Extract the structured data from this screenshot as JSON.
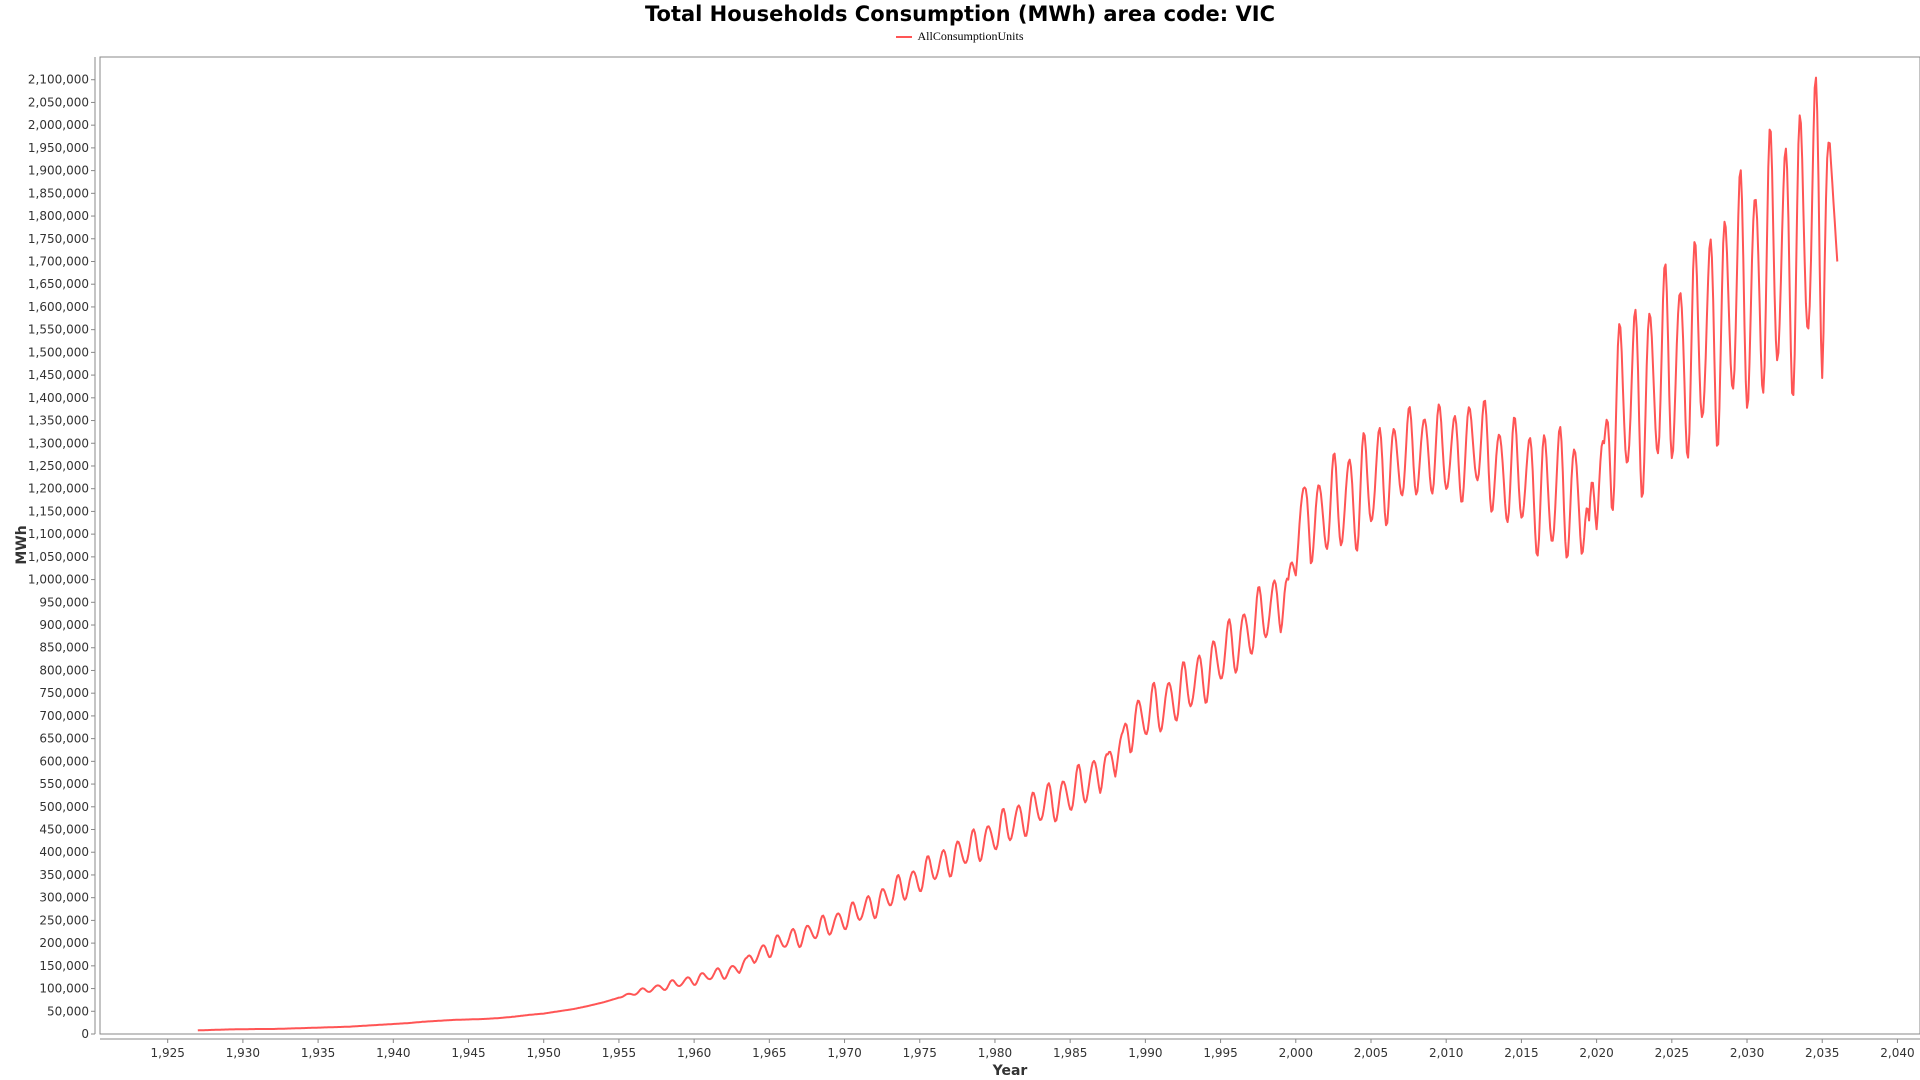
{
  "chart_data": {
    "type": "line",
    "title": "Total Households Consumption (MWh) area code: VIC",
    "xlabel": "Year",
    "ylabel": "MWh",
    "xlim": [
      1920.5,
      2041.5
    ],
    "ylim": [
      0,
      2150000
    ],
    "x_ticks": [
      1925,
      1930,
      1935,
      1940,
      1945,
      1950,
      1955,
      1960,
      1965,
      1970,
      1975,
      1980,
      1985,
      1990,
      1995,
      2000,
      2005,
      2010,
      2015,
      2020,
      2025,
      2030,
      2035,
      2040
    ],
    "x_tick_labels": [
      "1,925",
      "1,930",
      "1,935",
      "1,940",
      "1,945",
      "1,950",
      "1,955",
      "1,960",
      "1,965",
      "1,970",
      "1,975",
      "1,980",
      "1,985",
      "1,990",
      "1,995",
      "2,000",
      "2,005",
      "2,010",
      "2,015",
      "2,020",
      "2,025",
      "2,030",
      "2,035",
      "2,040"
    ],
    "y_tick_step": 50000,
    "y_tick_labels": [
      "0",
      "50,000",
      "100,000",
      "150,000",
      "200,000",
      "250,000",
      "300,000",
      "350,000",
      "400,000",
      "450,000",
      "500,000",
      "550,000",
      "600,000",
      "650,000",
      "700,000",
      "750,000",
      "800,000",
      "850,000",
      "900,000",
      "950,000",
      "1,000,000",
      "1,050,000",
      "1,100,000",
      "1,150,000",
      "1,200,000",
      "1,250,000",
      "1,300,000",
      "1,350,000",
      "1,400,000",
      "1,450,000",
      "1,500,000",
      "1,550,000",
      "1,600,000",
      "1,650,000",
      "1,700,000",
      "1,750,000",
      "1,800,000",
      "1,850,000",
      "1,900,000",
      "1,950,000",
      "2,000,000",
      "2,050,000",
      "2,100,000"
    ],
    "grid": false,
    "legend_position": "top-center",
    "series": [
      {
        "name": "AllConsumptionUnits",
        "color": "#ff5555",
        "x": [
          1927.0,
          1928.0,
          1929.0,
          1930.0,
          1931.0,
          1932.0,
          1933.0,
          1934.0,
          1935.0,
          1936.0,
          1937.0,
          1938.0,
          1939.0,
          1940.0,
          1941.0,
          1942.0,
          1943.0,
          1944.0,
          1945.0,
          1946.0,
          1947.0,
          1948.0,
          1949.0,
          1950.0,
          1951.0,
          1952.0,
          1953.0,
          1954.0,
          1955.0,
          1956.0,
          1957.0,
          1958.0,
          1959.0,
          1960.0,
          1961.0,
          1962.0,
          1963.0,
          1963.5,
          1964.0,
          1965.0,
          1966.0,
          1967.0,
          1968.0,
          1969.0,
          1970.0,
          1971.0,
          1972.0,
          1973.0,
          1974.0,
          1975.0,
          1976.0,
          1977.0,
          1978.0,
          1979.0,
          1980.0,
          1981.0,
          1982.0,
          1983.0,
          1984.0,
          1985.0,
          1986.0,
          1987.0,
          1987.5,
          1988.0,
          1988.5,
          1989.0,
          1990.0,
          1991.0,
          1992.0,
          1993.0,
          1994.0,
          1995.0,
          1996.0,
          1997.0,
          1998.0,
          1999.0,
          1999.5,
          2000.0,
          2000.5,
          2001.0,
          2002.0,
          2003.0,
          2004.0,
          2005.0,
          2006.0,
          2007.0,
          2008.0,
          2009.0,
          2010.0,
          2011.0,
          2012.0,
          2013.0,
          2014.0,
          2015.0,
          2016.0,
          2017.0,
          2018.0,
          2019.0,
          2019.5,
          2020.0,
          2020.5,
          2021.0,
          2022.0,
          2023.0,
          2024.0,
          2025.0,
          2026.0,
          2027.0,
          2028.0,
          2029.0,
          2030.0,
          2031.0,
          2032.0,
          2033.0,
          2034.0,
          2035.0,
          2035.5,
          2036.0
        ],
        "values": [
          8000,
          9000,
          10000,
          10500,
          11000,
          11000,
          12000,
          13000,
          14000,
          15000,
          16000,
          18000,
          20000,
          22000,
          24000,
          27000,
          29000,
          31000,
          32000,
          33000,
          35000,
          38000,
          42000,
          45000,
          50000,
          55000,
          62000,
          70000,
          80000,
          90000,
          98000,
          105000,
          112000,
          120000,
          128000,
          135000,
          145000,
          168000,
          170000,
          190000,
          205000,
          215000,
          228000,
          240000,
          255000,
          270000,
          285000,
          305000,
          325000,
          345000,
          365000,
          385000,
          400000,
          420000,
          440000,
          460000,
          480000,
          500000,
          515000,
          530000,
          550000,
          580000,
          615000,
          600000,
          665000,
          680000,
          700000,
          720000,
          745000,
          765000,
          795000,
          825000,
          860000,
          895000,
          925000,
          960000,
          1000000,
          1060000,
          1200000,
          1130000,
          1150000,
          1170000,
          1190000,
          1210000,
          1240000,
          1260000,
          1280000,
          1290000,
          1270000,
          1280000,
          1300000,
          1260000,
          1230000,
          1230000,
          1200000,
          1180000,
          1200000,
          1170000,
          1130000,
          1250000,
          1300000,
          1350000,
          1390000,
          1410000,
          1440000,
          1470000,
          1490000,
          1520000,
          1560000,
          1600000,
          1640000,
          1670000,
          1700000,
          1730000,
          1760000,
          1790000,
          1960000,
          1700000
        ],
        "seasonal_amplitude": [
          0,
          0,
          0,
          0,
          0,
          0,
          0,
          0,
          0,
          0,
          0,
          0,
          0,
          0,
          0,
          0,
          0,
          0,
          0,
          0,
          0,
          0,
          0,
          0,
          0,
          0,
          0,
          0,
          0,
          5000,
          5000,
          8000,
          8000,
          10000,
          10000,
          12000,
          12000,
          0,
          15000,
          18000,
          18000,
          20000,
          20000,
          22000,
          22000,
          25000,
          25000,
          28000,
          28000,
          30000,
          30000,
          32000,
          32000,
          35000,
          35000,
          38000,
          38000,
          40000,
          40000,
          42000,
          42000,
          45000,
          0,
          45000,
          0,
          50000,
          50000,
          52000,
          52000,
          55000,
          55000,
          58000,
          58000,
          60000,
          60000,
          65000,
          0,
          70000,
          0,
          80000,
          90000,
          100000,
          110000,
          110000,
          100000,
          90000,
          90000,
          90000,
          90000,
          90000,
          100000,
          100000,
          100000,
          110000,
          120000,
          130000,
          130000,
          130000,
          0,
          150000,
          0,
          170000,
          180000,
          190000,
          190000,
          200000,
          200000,
          210000,
          220000,
          230000,
          240000,
          250000,
          260000,
          270000,
          280000,
          300000,
          0,
          0
        ]
      }
    ]
  }
}
